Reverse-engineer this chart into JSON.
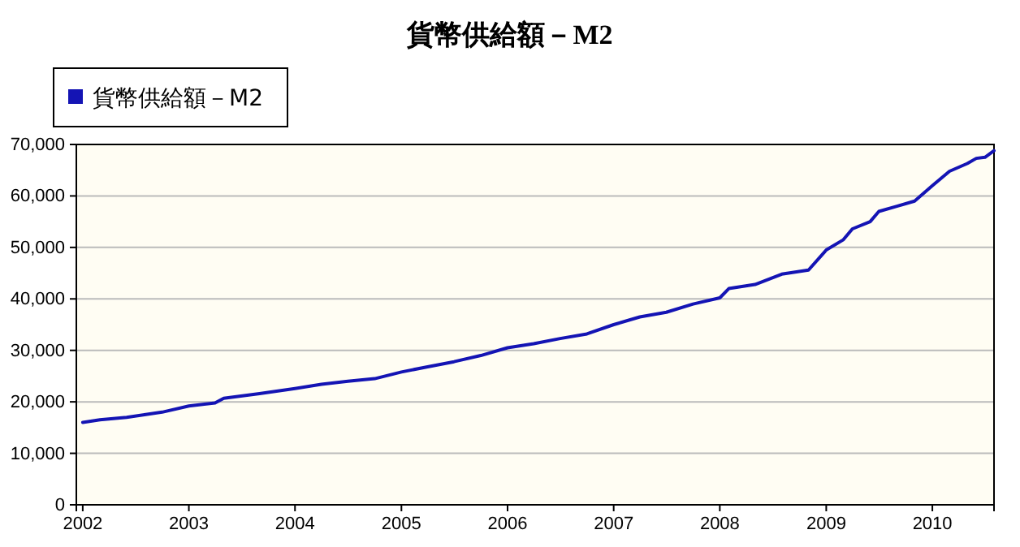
{
  "chart_data": {
    "type": "line",
    "title": "貨幣供給額－M2",
    "x": [
      "2002-01",
      "2002-03",
      "2002-06",
      "2002-10",
      "2003-01",
      "2003-04",
      "2003-05",
      "2003-09",
      "2004-01",
      "2004-04",
      "2004-07",
      "2004-10",
      "2005-01",
      "2005-04",
      "2005-07",
      "2005-10",
      "2006-01",
      "2006-04",
      "2006-07",
      "2006-10",
      "2007-01",
      "2007-04",
      "2007-07",
      "2007-10",
      "2008-01",
      "2008-02",
      "2008-05",
      "2008-08",
      "2008-11",
      "2009-01",
      "2009-03",
      "2009-04",
      "2009-06",
      "2009-07",
      "2009-09",
      "2009-11",
      "2010-01",
      "2010-03",
      "2010-05",
      "2010-06",
      "2010-07",
      "2010-08"
    ],
    "series": [
      {
        "name": "貨幣供給額－M2",
        "color": "#1414b4",
        "values": [
          16000,
          16500,
          17000,
          18000,
          19200,
          19800,
          20700,
          21600,
          22600,
          23400,
          24000,
          24500,
          25800,
          26800,
          27800,
          29000,
          30500,
          31300,
          32300,
          33200,
          35000,
          36500,
          37400,
          39000,
          40200,
          42000,
          42800,
          44800,
          45600,
          49500,
          51500,
          53600,
          55000,
          57000,
          58000,
          59000,
          62000,
          64800,
          66300,
          67300,
          67500,
          68800
        ]
      }
    ],
    "xlim": [
      "2001-12-10",
      "2010-08-01"
    ],
    "xticks": [
      {
        "value": "2002",
        "label": "2002"
      },
      {
        "value": "2003",
        "label": "2003"
      },
      {
        "value": "2004",
        "label": "2004"
      },
      {
        "value": "2005",
        "label": "2005"
      },
      {
        "value": "2006",
        "label": "2006"
      },
      {
        "value": "2007",
        "label": "2007"
      },
      {
        "value": "2008",
        "label": "2008"
      },
      {
        "value": "2009",
        "label": "2009"
      },
      {
        "value": "2010",
        "label": "2010"
      }
    ],
    "ylim": [
      0,
      70000
    ],
    "yticks": [
      {
        "value": 0,
        "label": "0"
      },
      {
        "value": 10000,
        "label": "10,000"
      },
      {
        "value": 20000,
        "label": "20,000"
      },
      {
        "value": 30000,
        "label": "30,000"
      },
      {
        "value": 40000,
        "label": "40,000"
      },
      {
        "value": 50000,
        "label": "50,000"
      },
      {
        "value": 60000,
        "label": "60,000"
      },
      {
        "value": 70000,
        "label": "70,000"
      }
    ],
    "grid": "y",
    "legend": "top left",
    "marker": "none",
    "line_style": "solid"
  }
}
